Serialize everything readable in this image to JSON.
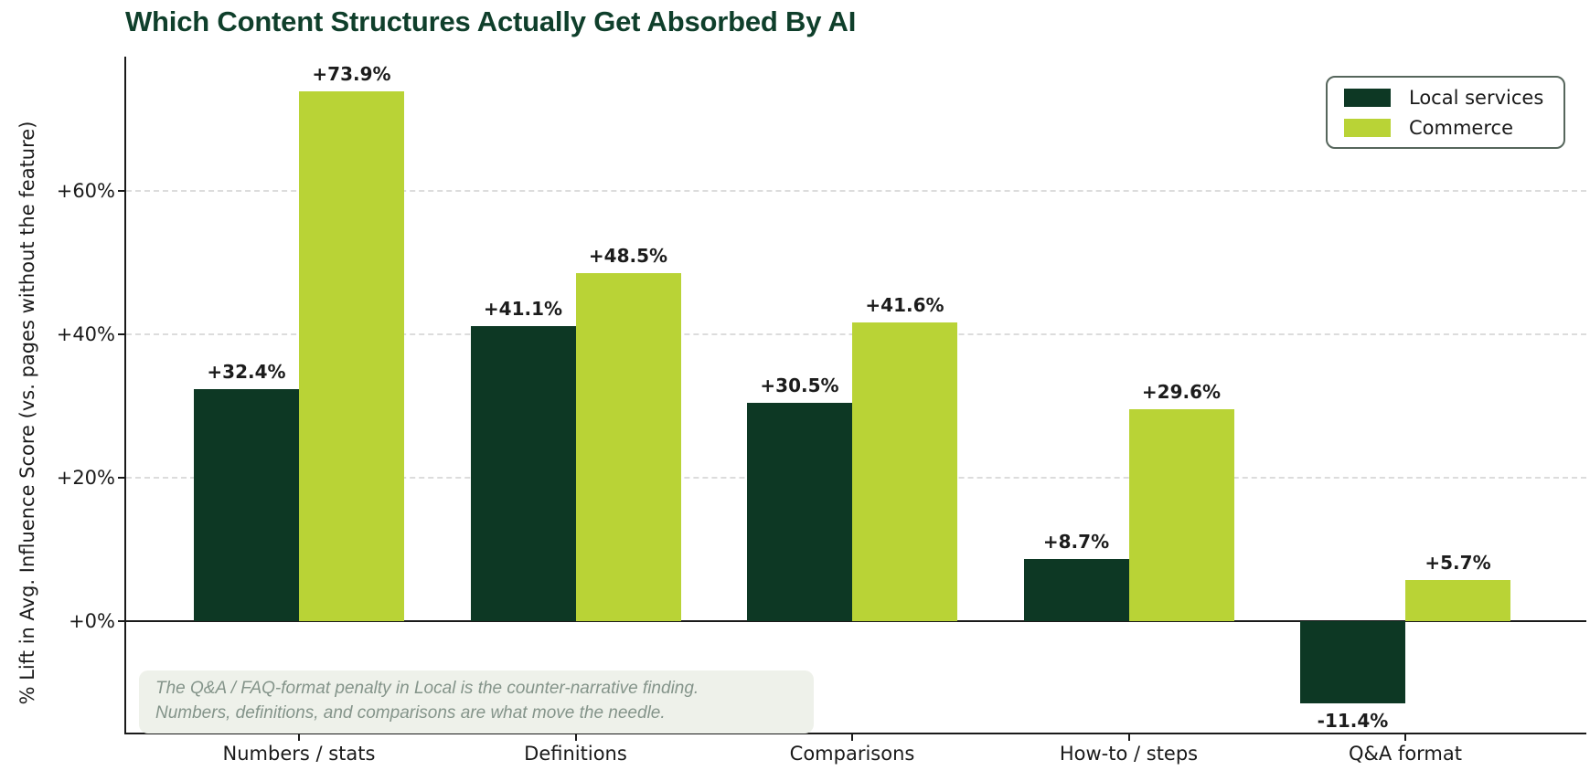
{
  "title": "Which Content Structures Actually Get Absorbed By AI",
  "y_axis": {
    "label": "% Lift in Avg. Influence Score (vs. pages without the feature)"
  },
  "legend": {
    "items": [
      {
        "label": "Local services",
        "color": "#0d3824"
      },
      {
        "label": "Commerce",
        "color": "#b9d336"
      }
    ]
  },
  "annotation": {
    "line1": "The Q&A / FAQ-format penalty in Local is the counter-narrative finding.",
    "line2": "Numbers, definitions, and comparisons are what move the needle."
  },
  "colors": {
    "local_series": "#0d3824",
    "commerce_series": "#b9d336",
    "title_text": "#0f3f2b",
    "axis": "#1a1a1a",
    "gridline": "#dcdcdc",
    "annotation_bg": "#eef1ea",
    "annotation_text": "#84948a",
    "legend_border": "#56665c"
  },
  "chart_data": {
    "type": "bar",
    "title": "Which Content Structures Actually Get Absorbed By AI",
    "xlabel": "",
    "ylabel": "% Lift in Avg. Influence Score (vs. pages without the feature)",
    "categories": [
      "Numbers / stats",
      "Definitions",
      "Comparisons",
      "How-to / steps",
      "Q&A format"
    ],
    "series": [
      {
        "name": "Local services",
        "color": "#0d3824",
        "values": [
          32.4,
          41.1,
          30.5,
          8.7,
          -11.4
        ],
        "labels": [
          "+32.4%",
          "+41.1%",
          "+30.5%",
          "+8.7%",
          "-11.4%"
        ]
      },
      {
        "name": "Commerce",
        "color": "#b9d336",
        "values": [
          73.9,
          48.5,
          41.6,
          29.6,
          5.7
        ],
        "labels": [
          "+73.9%",
          "+48.5%",
          "+41.6%",
          "+29.6%",
          "+5.7%"
        ]
      }
    ],
    "yticks": [
      {
        "value": 0,
        "label": "+0%"
      },
      {
        "value": 20,
        "label": "+20%"
      },
      {
        "value": 40,
        "label": "+40%"
      },
      {
        "value": 60,
        "label": "+60%"
      }
    ],
    "ylim": [
      -15.5,
      78.7
    ],
    "grid": "horizontal dashed at +20/+40/+60, solid zero line",
    "legend_position": "upper right"
  }
}
